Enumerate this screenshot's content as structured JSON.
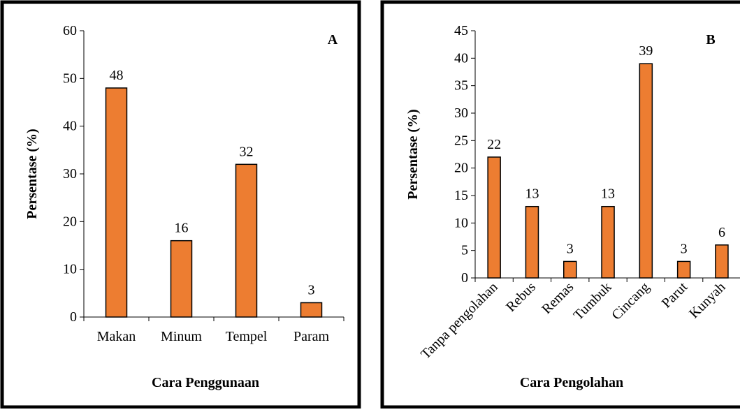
{
  "chart_data": [
    {
      "type": "bar",
      "panel_label": "A",
      "categories": [
        "Makan",
        "Minum",
        "Tempel",
        "Param"
      ],
      "values": [
        48,
        16,
        32,
        3
      ],
      "data_labels": [
        "48",
        "16",
        "32",
        "3"
      ],
      "xlabel": "Cara Penggunaan",
      "ylabel": "Persentase (%)",
      "ylim": [
        0,
        60
      ],
      "yticks": [
        0,
        10,
        20,
        30,
        40,
        50,
        60
      ],
      "grid": false,
      "bar_color": "#ED7D31",
      "bar_edge_color": "#000000"
    },
    {
      "type": "bar",
      "panel_label": "B",
      "categories": [
        "Tanpa pengolahan",
        "Rebus",
        "Remas",
        "Tumbuk",
        "Cincang",
        "Parut",
        "Kunyah"
      ],
      "values": [
        22,
        13,
        3,
        13,
        39,
        3,
        6
      ],
      "data_labels": [
        "22",
        "13",
        "3",
        "13",
        "39",
        "3",
        "6"
      ],
      "xlabel": "Cara Pengolahan",
      "ylabel": "Persentase (%)",
      "ylim": [
        0,
        45
      ],
      "yticks": [
        0,
        5,
        10,
        15,
        20,
        25,
        30,
        35,
        40,
        45
      ],
      "grid": false,
      "bar_color": "#ED7D31",
      "bar_edge_color": "#000000"
    }
  ]
}
